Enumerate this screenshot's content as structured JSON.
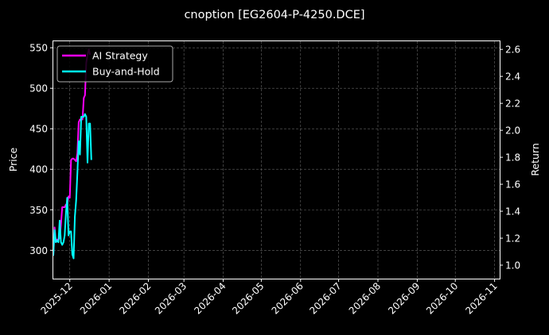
{
  "chart_data": {
    "type": "line",
    "title": "cnoption [EG2604-P-4250.DCE]",
    "xlabel": "",
    "ylabel": "Price",
    "y2label": "Return",
    "xlim": [
      "2025-11-18",
      "2026-11-05"
    ],
    "ylim": [
      265,
      558
    ],
    "y2lim": [
      0.9,
      2.66
    ],
    "yticks": [
      300,
      350,
      400,
      450,
      500,
      550
    ],
    "y2ticks": [
      1.0,
      1.2,
      1.4,
      1.6,
      1.8,
      2.0,
      2.2,
      2.4,
      2.6
    ],
    "xticks": [
      "2025-12",
      "2026-01",
      "2026-02",
      "2026-03",
      "2026-04",
      "2026-05",
      "2026-06",
      "2026-07",
      "2026-08",
      "2026-09",
      "2026-10",
      "2026-11"
    ],
    "grid": true,
    "legend_position": "top-left",
    "series": [
      {
        "name": "AI Strategy",
        "axis": "right",
        "color": "#ff00ff",
        "x": [
          "2025-11-18",
          "2025-11-19",
          "2025-11-20",
          "2025-11-21",
          "2025-11-22",
          "2025-11-23",
          "2025-11-24",
          "2025-11-25",
          "2025-11-26",
          "2025-11-27",
          "2025-11-28",
          "2025-11-29",
          "2025-11-30",
          "2025-12-01",
          "2025-12-02",
          "2025-12-03",
          "2025-12-04",
          "2025-12-05",
          "2025-12-06",
          "2025-12-07",
          "2025-12-08",
          "2025-12-09",
          "2025-12-10",
          "2025-12-11",
          "2025-12-12",
          "2025-12-13",
          "2025-12-14",
          "2025-12-15",
          "2025-12-16",
          "2025-12-17"
        ],
        "values": [
          1.07,
          1.28,
          1.17,
          1.19,
          1.19,
          1.2,
          1.3,
          1.43,
          1.43,
          1.43,
          1.45,
          1.45,
          1.51,
          1.5,
          1.78,
          1.79,
          1.79,
          1.78,
          1.77,
          1.83,
          2.06,
          2.08,
          2.08,
          2.08,
          2.24,
          2.26,
          2.5,
          2.56,
          2.6,
          2.56
        ]
      },
      {
        "name": "Buy-and-Hold",
        "axis": "right",
        "color": "#00ffff",
        "x": [
          "2025-11-18",
          "2025-11-19",
          "2025-11-20",
          "2025-11-21",
          "2025-11-22",
          "2025-11-23",
          "2025-11-24",
          "2025-11-25",
          "2025-11-26",
          "2025-11-27",
          "2025-11-28",
          "2025-11-29",
          "2025-11-30",
          "2025-12-01",
          "2025-12-02",
          "2025-12-03",
          "2025-12-04",
          "2025-12-05",
          "2025-12-06",
          "2025-12-07",
          "2025-12-08",
          "2025-12-09",
          "2025-12-10",
          "2025-12-11",
          "2025-12-12",
          "2025-12-13",
          "2025-12-14",
          "2025-12-15",
          "2025-12-16",
          "2025-12-17",
          "2025-12-18"
        ],
        "values": [
          1.07,
          1.26,
          1.17,
          1.18,
          1.17,
          1.33,
          1.17,
          1.15,
          1.17,
          1.22,
          1.39,
          1.5,
          1.22,
          1.25,
          1.25,
          1.08,
          1.05,
          1.36,
          1.48,
          1.69,
          1.92,
          1.82,
          2.1,
          2.1,
          2.1,
          2.12,
          2.1,
          1.76,
          2.05,
          2.05,
          1.78
        ]
      }
    ]
  }
}
